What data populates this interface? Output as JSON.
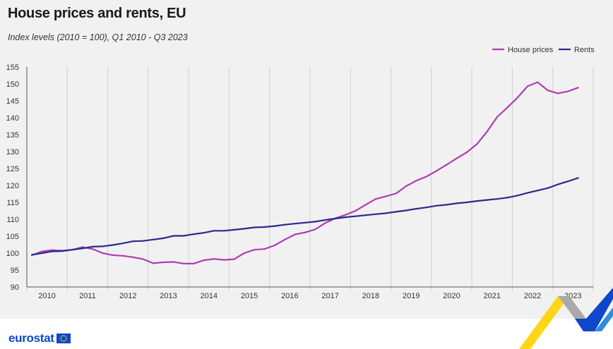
{
  "title": "House prices and rents, EU",
  "subtitle": "Index levels (2010 = 100), Q1 2010 - Q3 2023",
  "logo_text": "eurostat",
  "colors": {
    "house_prices": "#b23cb4",
    "rents": "#2c2a8c",
    "background": "#f1f1f1",
    "grid": "#d0d0d0",
    "logo": "#0e47cb"
  },
  "chart_data": {
    "type": "line",
    "title": "House prices and rents, EU",
    "subtitle": "Index levels (2010 = 100), Q1 2010 - Q3 2023",
    "xlabel": "",
    "ylabel": "",
    "ylim": [
      90,
      155
    ],
    "yticks": [
      90,
      95,
      100,
      105,
      110,
      115,
      120,
      125,
      130,
      135,
      140,
      145,
      150,
      155
    ],
    "xticks": [
      "2010",
      "2011",
      "2012",
      "2013",
      "2014",
      "2015",
      "2016",
      "2017",
      "2018",
      "2019",
      "2020",
      "2021",
      "2022",
      "2023"
    ],
    "quarters_per_year": 4,
    "grid": "vertical year separators",
    "legend_position": "top-right",
    "series": [
      {
        "name": "House prices",
        "color": "#b23cb4",
        "values": [
          99.4,
          100.5,
          100.9,
          100.7,
          101.0,
          101.8,
          101.2,
          100.0,
          99.4,
          99.2,
          98.8,
          98.2,
          97.0,
          97.3,
          97.4,
          96.9,
          96.9,
          97.9,
          98.3,
          98.0,
          98.2,
          100.0,
          101.0,
          101.2,
          102.3,
          104.0,
          105.5,
          106.1,
          107.0,
          108.9,
          110.3,
          111.3,
          112.5,
          114.3,
          116.0,
          116.8,
          117.6,
          119.8,
          121.4,
          122.6,
          124.3,
          126.1,
          128.0,
          129.8,
          132.2,
          135.9,
          140.2,
          143.0,
          145.9,
          149.3,
          150.5,
          148.1,
          147.2,
          147.8,
          148.9
        ]
      },
      {
        "name": "Rents",
        "color": "#2c2a8c",
        "values": [
          99.5,
          100.0,
          100.5,
          100.6,
          101.0,
          101.4,
          101.9,
          102.0,
          102.4,
          102.9,
          103.5,
          103.6,
          104.0,
          104.4,
          105.1,
          105.1,
          105.6,
          106.0,
          106.6,
          106.6,
          106.9,
          107.2,
          107.6,
          107.7,
          108.0,
          108.4,
          108.7,
          109.0,
          109.3,
          109.8,
          110.2,
          110.6,
          110.9,
          111.2,
          111.5,
          111.8,
          112.2,
          112.6,
          113.1,
          113.5,
          114.0,
          114.3,
          114.7,
          115.0,
          115.4,
          115.7,
          116.0,
          116.4,
          117.0,
          117.8,
          118.5,
          119.2,
          120.3,
          121.2,
          122.2
        ]
      }
    ]
  }
}
